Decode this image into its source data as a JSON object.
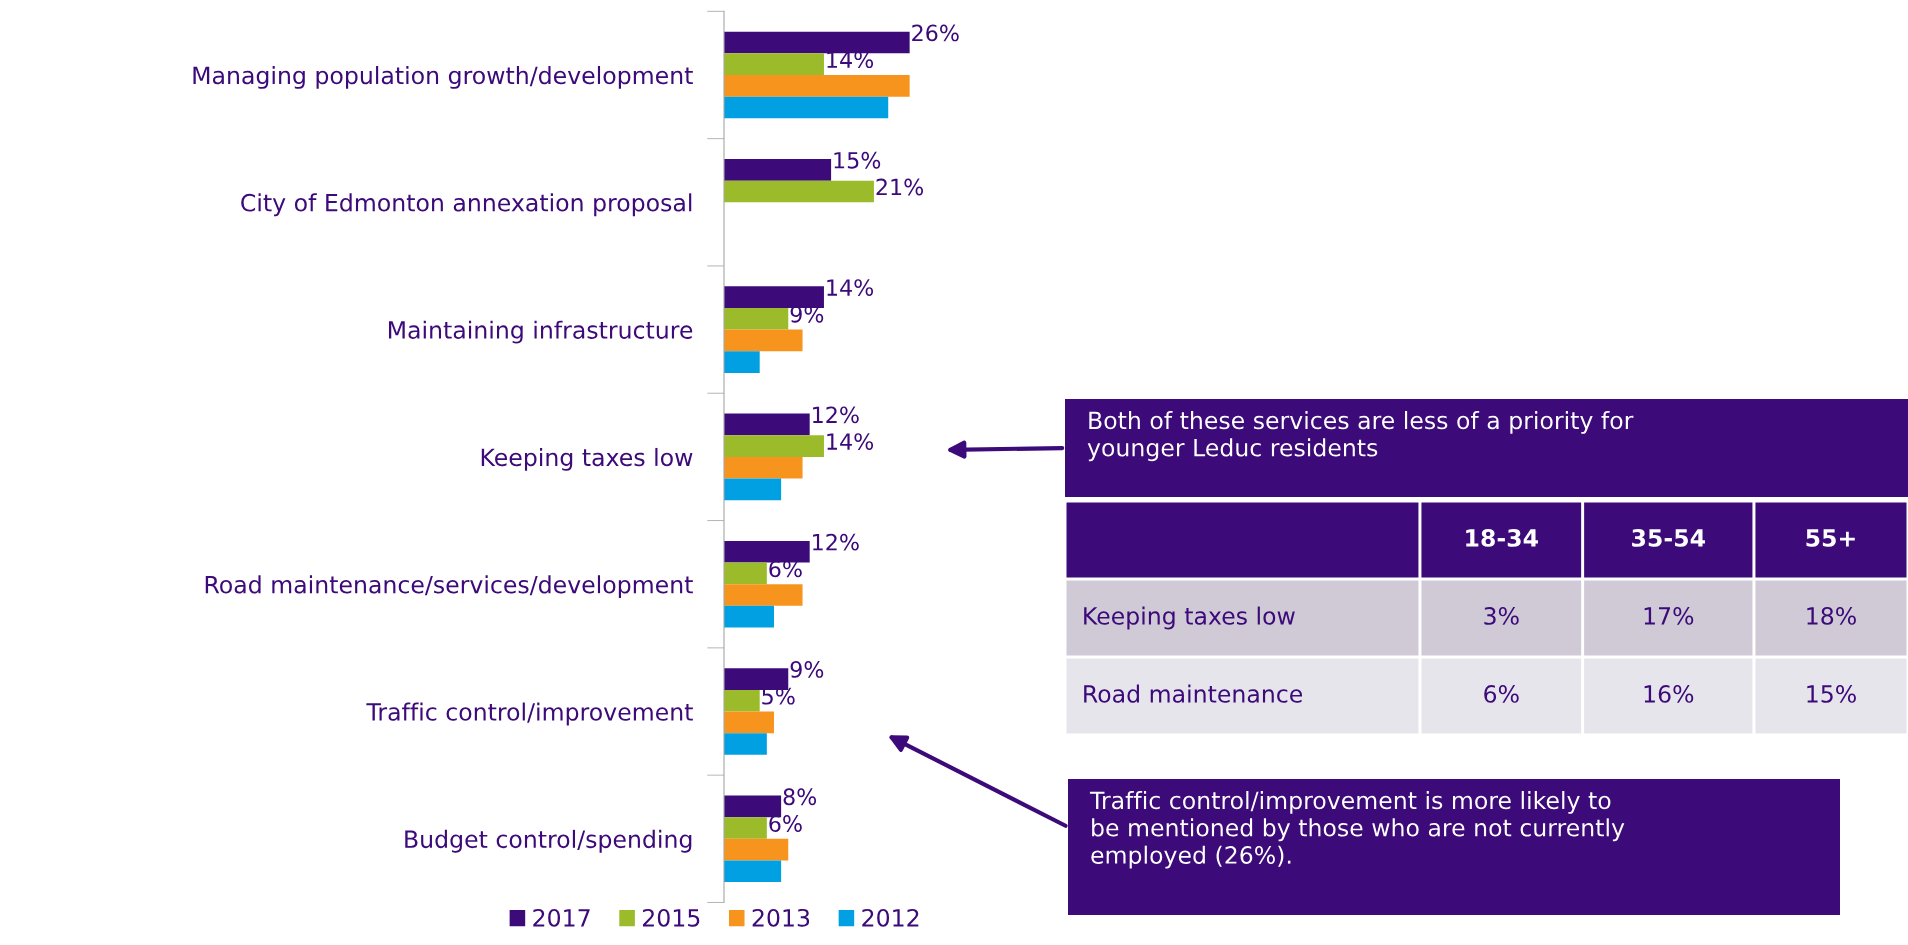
{
  "chart_data": [
    {
      "type": "bar",
      "orientation": "horizontal",
      "legend": "bottom",
      "categories": [
        "Managing population growth/development",
        "City of Edmonton annexation proposal",
        "Maintaining infrastructure",
        "Keeping taxes low",
        "Road maintenance/services/development",
        "Traffic control/improvement",
        "Budget control/spending"
      ],
      "series": [
        {
          "name": "2017",
          "color": "#3d0a7a",
          "values": [
            26,
            15,
            14,
            12,
            12,
            9,
            8
          ],
          "value_labels": [
            "26%",
            "15%",
            "14%",
            "12%",
            "12%",
            "9%",
            "8%"
          ]
        },
        {
          "name": "2015",
          "color": "#9bbb2b",
          "values": [
            14,
            21,
            9,
            14,
            6,
            5,
            6
          ],
          "value_labels": [
            "14%",
            "21%",
            "9%",
            "14%",
            "6%",
            "5%",
            "6%"
          ]
        },
        {
          "name": "2013",
          "color": "#f7941d",
          "values": [
            26,
            null,
            11,
            11,
            11,
            7,
            9
          ]
        },
        {
          "name": "2012",
          "color": "#00a0e3",
          "values": [
            23,
            null,
            5,
            8,
            7,
            6,
            8
          ]
        }
      ],
      "annotations": [
        "Both of these services are less of a priority for\nyounger Leduc residents",
        "Traffic control/improvement is more likely to\nbe mentioned by those who are not currently\nemployed (26%)."
      ]
    },
    {
      "type": "other",
      "categories": [
        null,
        "18-34",
        "35-54",
        "55+"
      ],
      "y_categories": [
        "Keeping taxes low",
        "Road maintenance"
      ],
      "cell_labels": [
        [
          "3%",
          "17%",
          "18%"
        ],
        [
          "6%",
          "16%",
          "15%"
        ]
      ]
    }
  ]
}
